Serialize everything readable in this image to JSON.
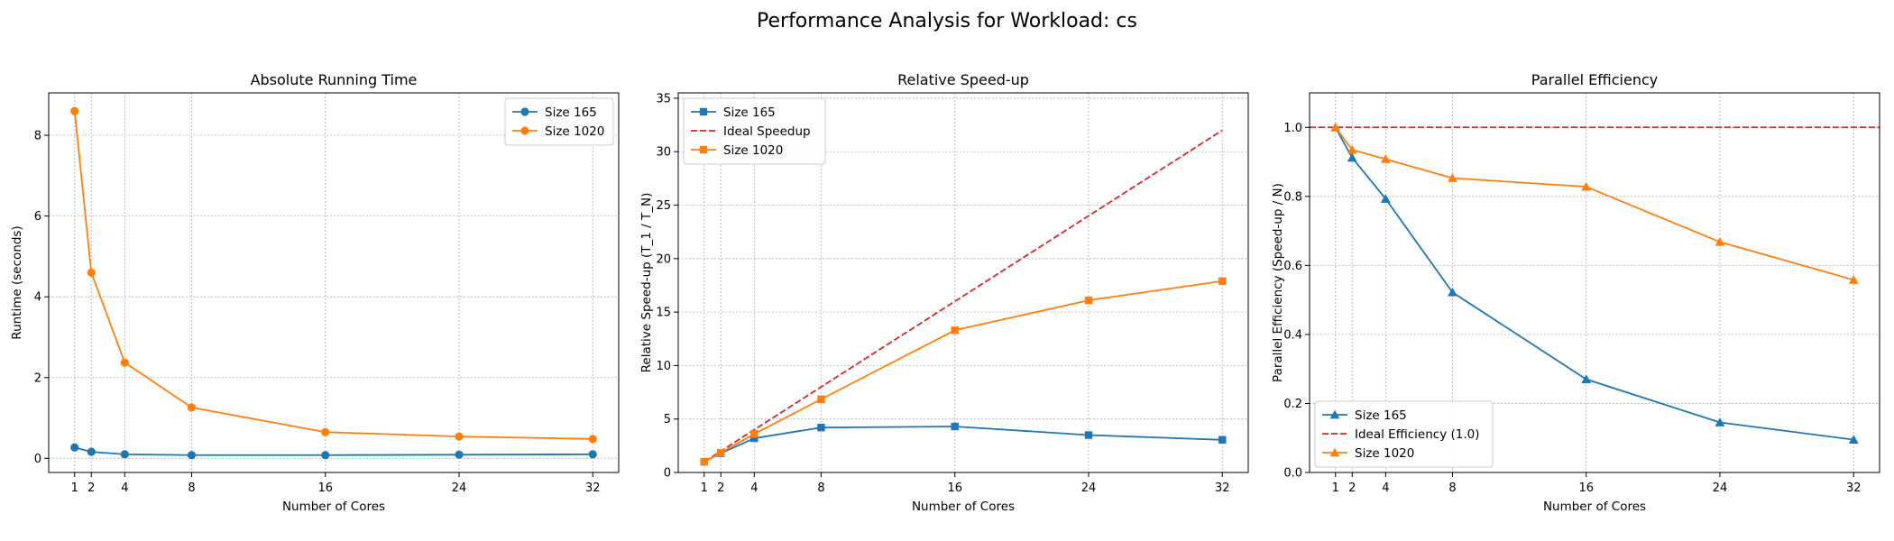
{
  "figure": {
    "suptitle": "Performance Analysis for Workload: cs"
  },
  "colors": {
    "blue": "#1f77b4",
    "orange": "#ff7f0e",
    "red": "#d62728"
  },
  "chart_data": [
    {
      "type": "line",
      "title": "Absolute Running Time",
      "xlabel": "Number of Cores",
      "ylabel": "Runtime (seconds)",
      "x": [
        1,
        2,
        4,
        8,
        16,
        24,
        32
      ],
      "xticks": [
        1,
        2,
        4,
        8,
        16,
        24,
        32
      ],
      "yticks": [
        0,
        2,
        4,
        6,
        8
      ],
      "xlim": [
        -0.55,
        33.55
      ],
      "ylim": [
        -0.35,
        9.05
      ],
      "grid": true,
      "legend": "top-right",
      "series": [
        {
          "name": "Size 165",
          "color": "#1f77b4",
          "marker": "circle",
          "values": [
            0.27,
            0.16,
            0.1,
            0.08,
            0.08,
            0.09,
            0.1
          ]
        },
        {
          "name": "Size 1020",
          "color": "#ff7f0e",
          "marker": "circle",
          "values": [
            8.6,
            4.6,
            2.37,
            1.26,
            0.65,
            0.54,
            0.48
          ]
        }
      ]
    },
    {
      "type": "line",
      "title": "Relative Speed-up",
      "xlabel": "Number of Cores",
      "ylabel": "Relative Speed-up (T_1 / T_N)",
      "x": [
        1,
        2,
        4,
        8,
        16,
        24,
        32
      ],
      "xticks": [
        1,
        2,
        4,
        8,
        16,
        24,
        32
      ],
      "yticks": [
        0,
        5,
        10,
        15,
        20,
        25,
        30,
        35
      ],
      "xlim": [
        -0.55,
        33.55
      ],
      "ylim": [
        0,
        35.5
      ],
      "grid": true,
      "legend": "top-left",
      "series": [
        {
          "name": "Size 165",
          "color": "#1f77b4",
          "marker": "square",
          "values": [
            1.0,
            1.8,
            3.2,
            4.2,
            4.3,
            3.5,
            3.05
          ]
        },
        {
          "name": "Ideal Speedup",
          "color": "#d62728",
          "dashed": true,
          "values": [
            1,
            2,
            4,
            8,
            16,
            24,
            32
          ]
        },
        {
          "name": "Size 1020",
          "color": "#ff7f0e",
          "marker": "square",
          "values": [
            1.0,
            1.85,
            3.6,
            6.85,
            13.3,
            16.1,
            17.9
          ]
        }
      ]
    },
    {
      "type": "line",
      "title": "Parallel Efficiency",
      "xlabel": "Number of Cores",
      "ylabel": "Parallel Efficiency (Speed-up / N)",
      "x": [
        1,
        2,
        4,
        8,
        16,
        24,
        32
      ],
      "xticks": [
        1,
        2,
        4,
        8,
        16,
        24,
        32
      ],
      "yticks": [
        0.0,
        0.2,
        0.4,
        0.6,
        0.8,
        1.0
      ],
      "xlim": [
        -0.55,
        33.55
      ],
      "ylim": [
        0,
        1.1
      ],
      "grid": true,
      "legend": "bottom-left",
      "series": [
        {
          "name": "Size 165",
          "color": "#1f77b4",
          "marker": "triangle",
          "values": [
            1.0,
            0.912,
            0.793,
            0.522,
            0.27,
            0.145,
            0.095
          ]
        },
        {
          "name": "Ideal Efficiency (1.0)",
          "color": "#d62728",
          "dashed": true,
          "hline": 1.0
        },
        {
          "name": "Size 1020",
          "color": "#ff7f0e",
          "marker": "triangle",
          "values": [
            1.0,
            0.935,
            0.908,
            0.853,
            0.828,
            0.668,
            0.558
          ]
        }
      ]
    }
  ]
}
